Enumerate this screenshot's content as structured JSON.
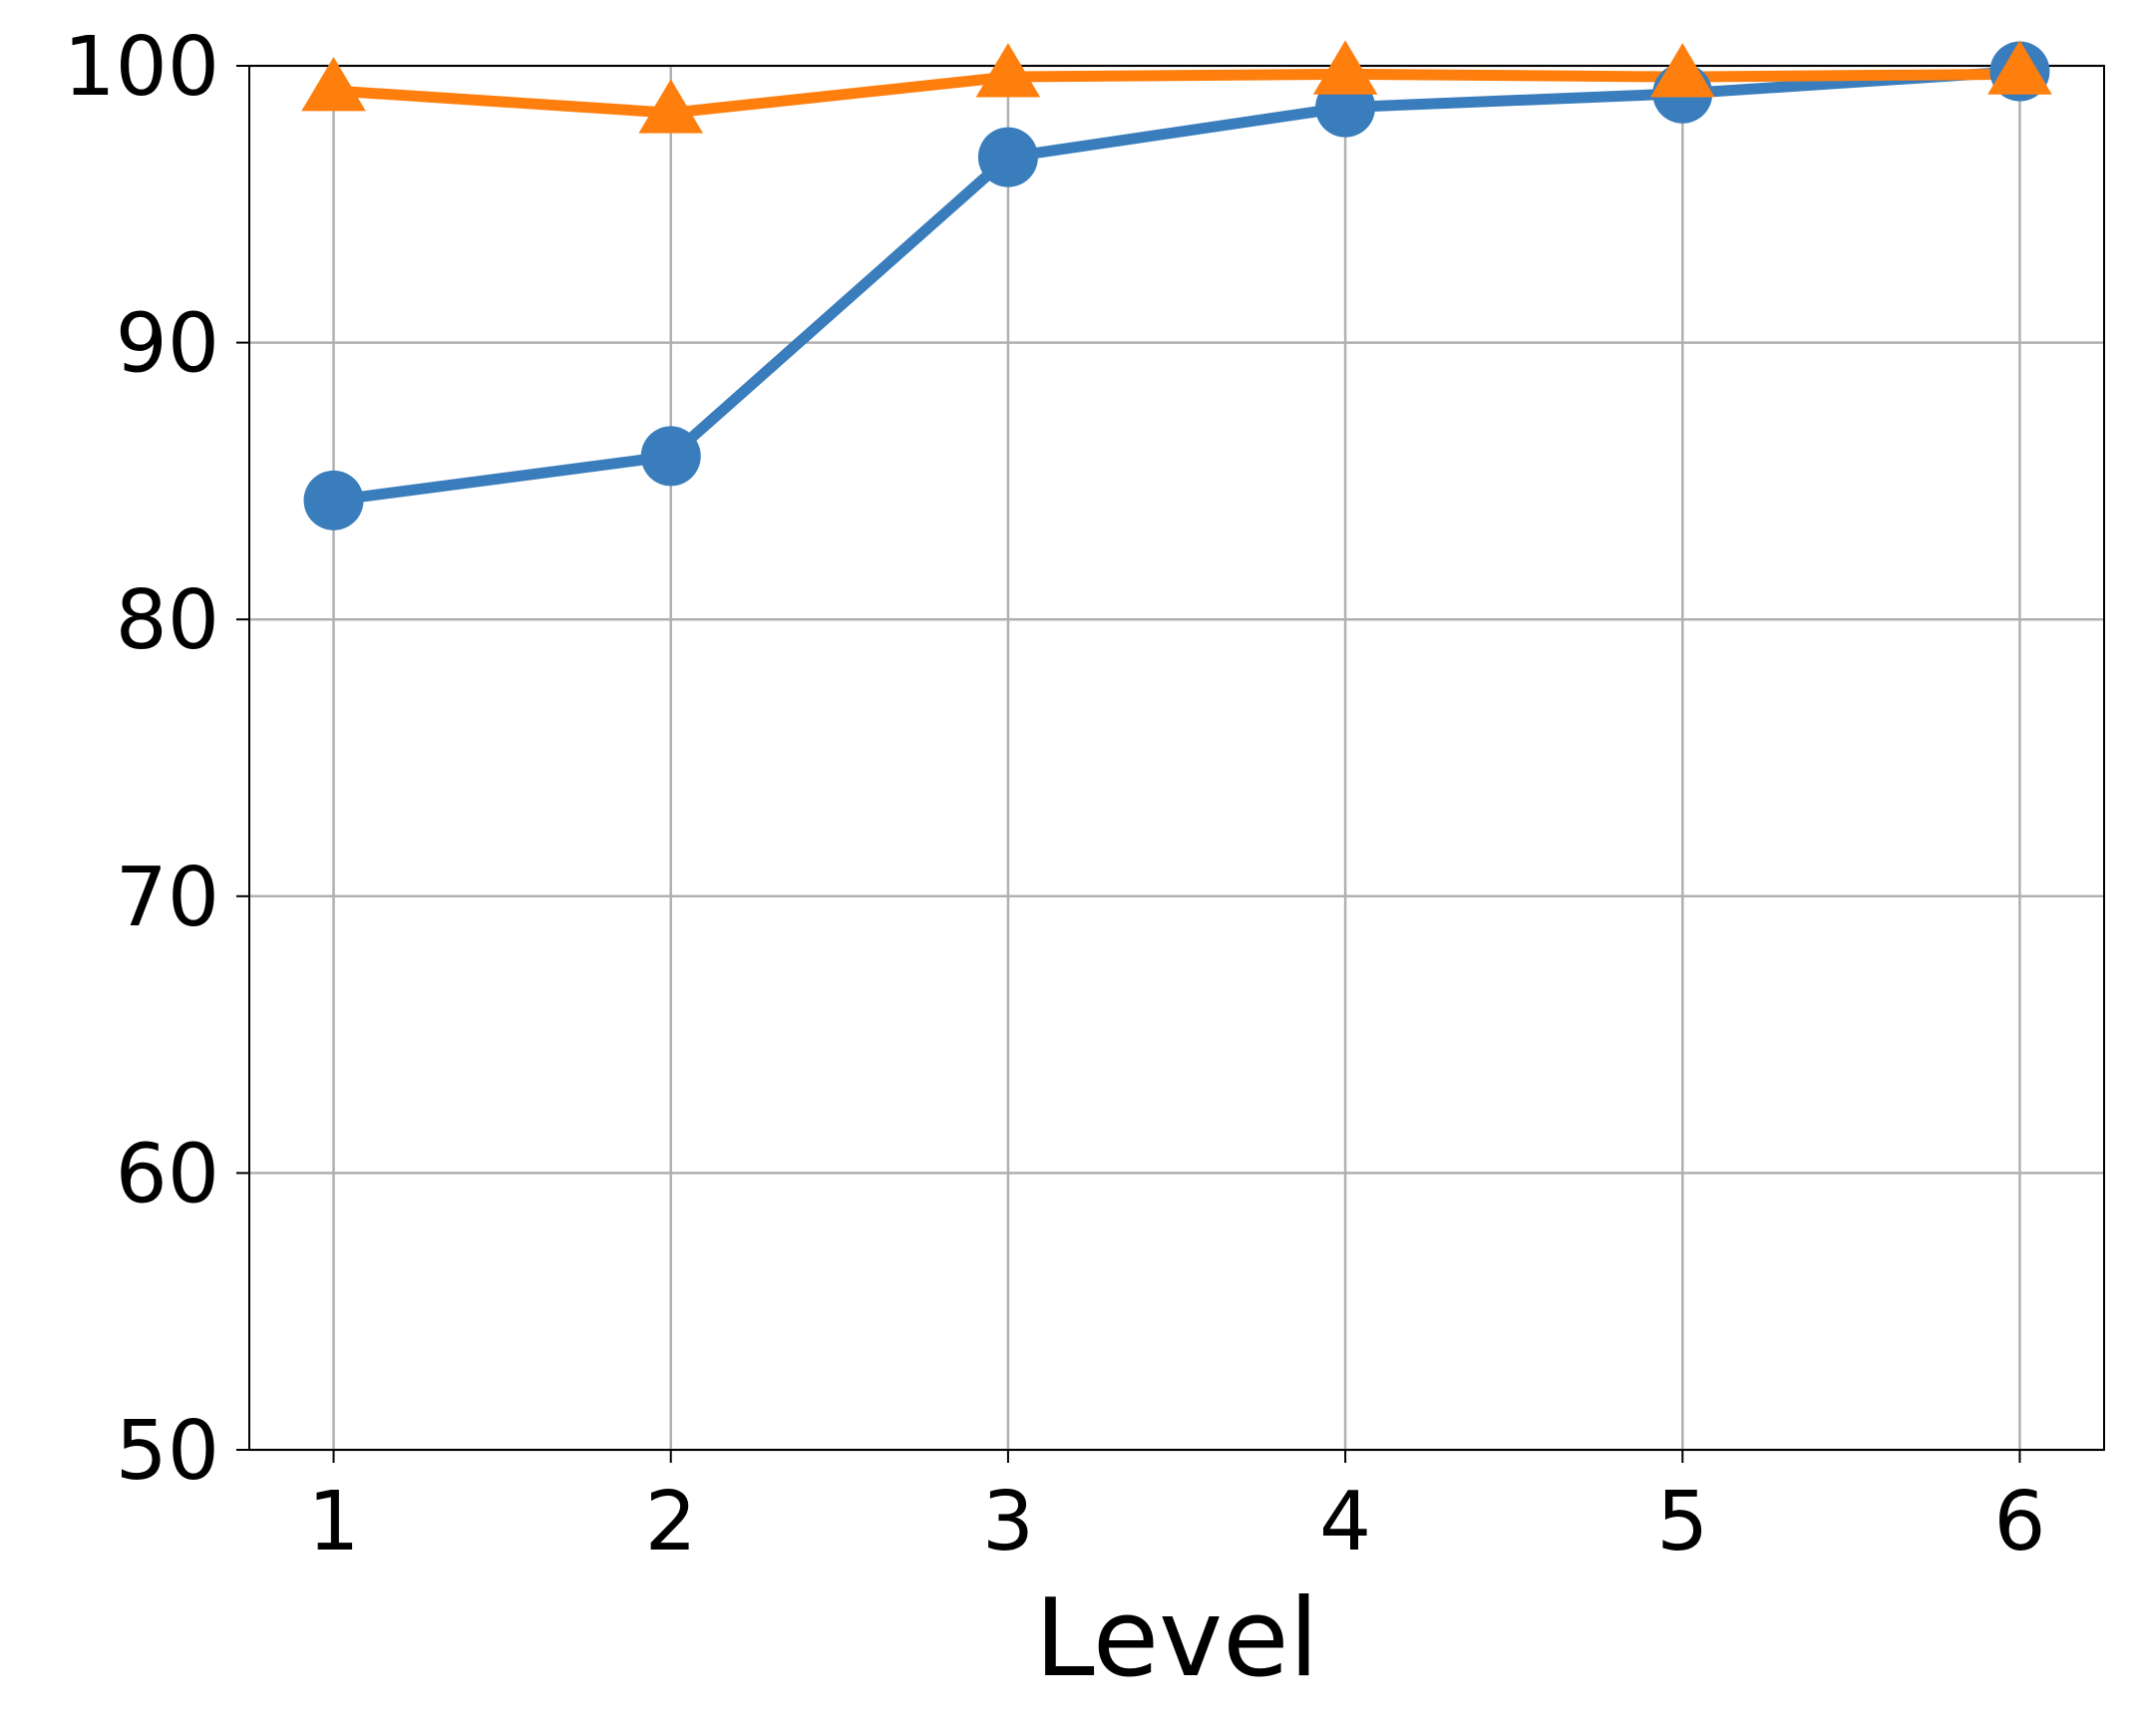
{
  "chart_data": {
    "type": "line",
    "xlabel": "Level",
    "x": [
      1,
      2,
      3,
      4,
      5,
      6
    ],
    "series": [
      {
        "color": "#3a7dbc",
        "marker": "circle",
        "values": [
          84.3,
          85.9,
          96.7,
          98.5,
          99.0,
          99.8
        ]
      },
      {
        "color": "#ff7f0e",
        "marker": "triangle",
        "values": [
          99.1,
          98.3,
          99.6,
          99.7,
          99.6,
          99.7
        ]
      }
    ],
    "xlim": [
      0.75,
      6.25
    ],
    "xticks": [
      1,
      2,
      3,
      4,
      5,
      6
    ],
    "ylim": [
      50,
      100
    ],
    "yticks": [
      50,
      60,
      70,
      80,
      90,
      100
    ],
    "grid": true
  }
}
